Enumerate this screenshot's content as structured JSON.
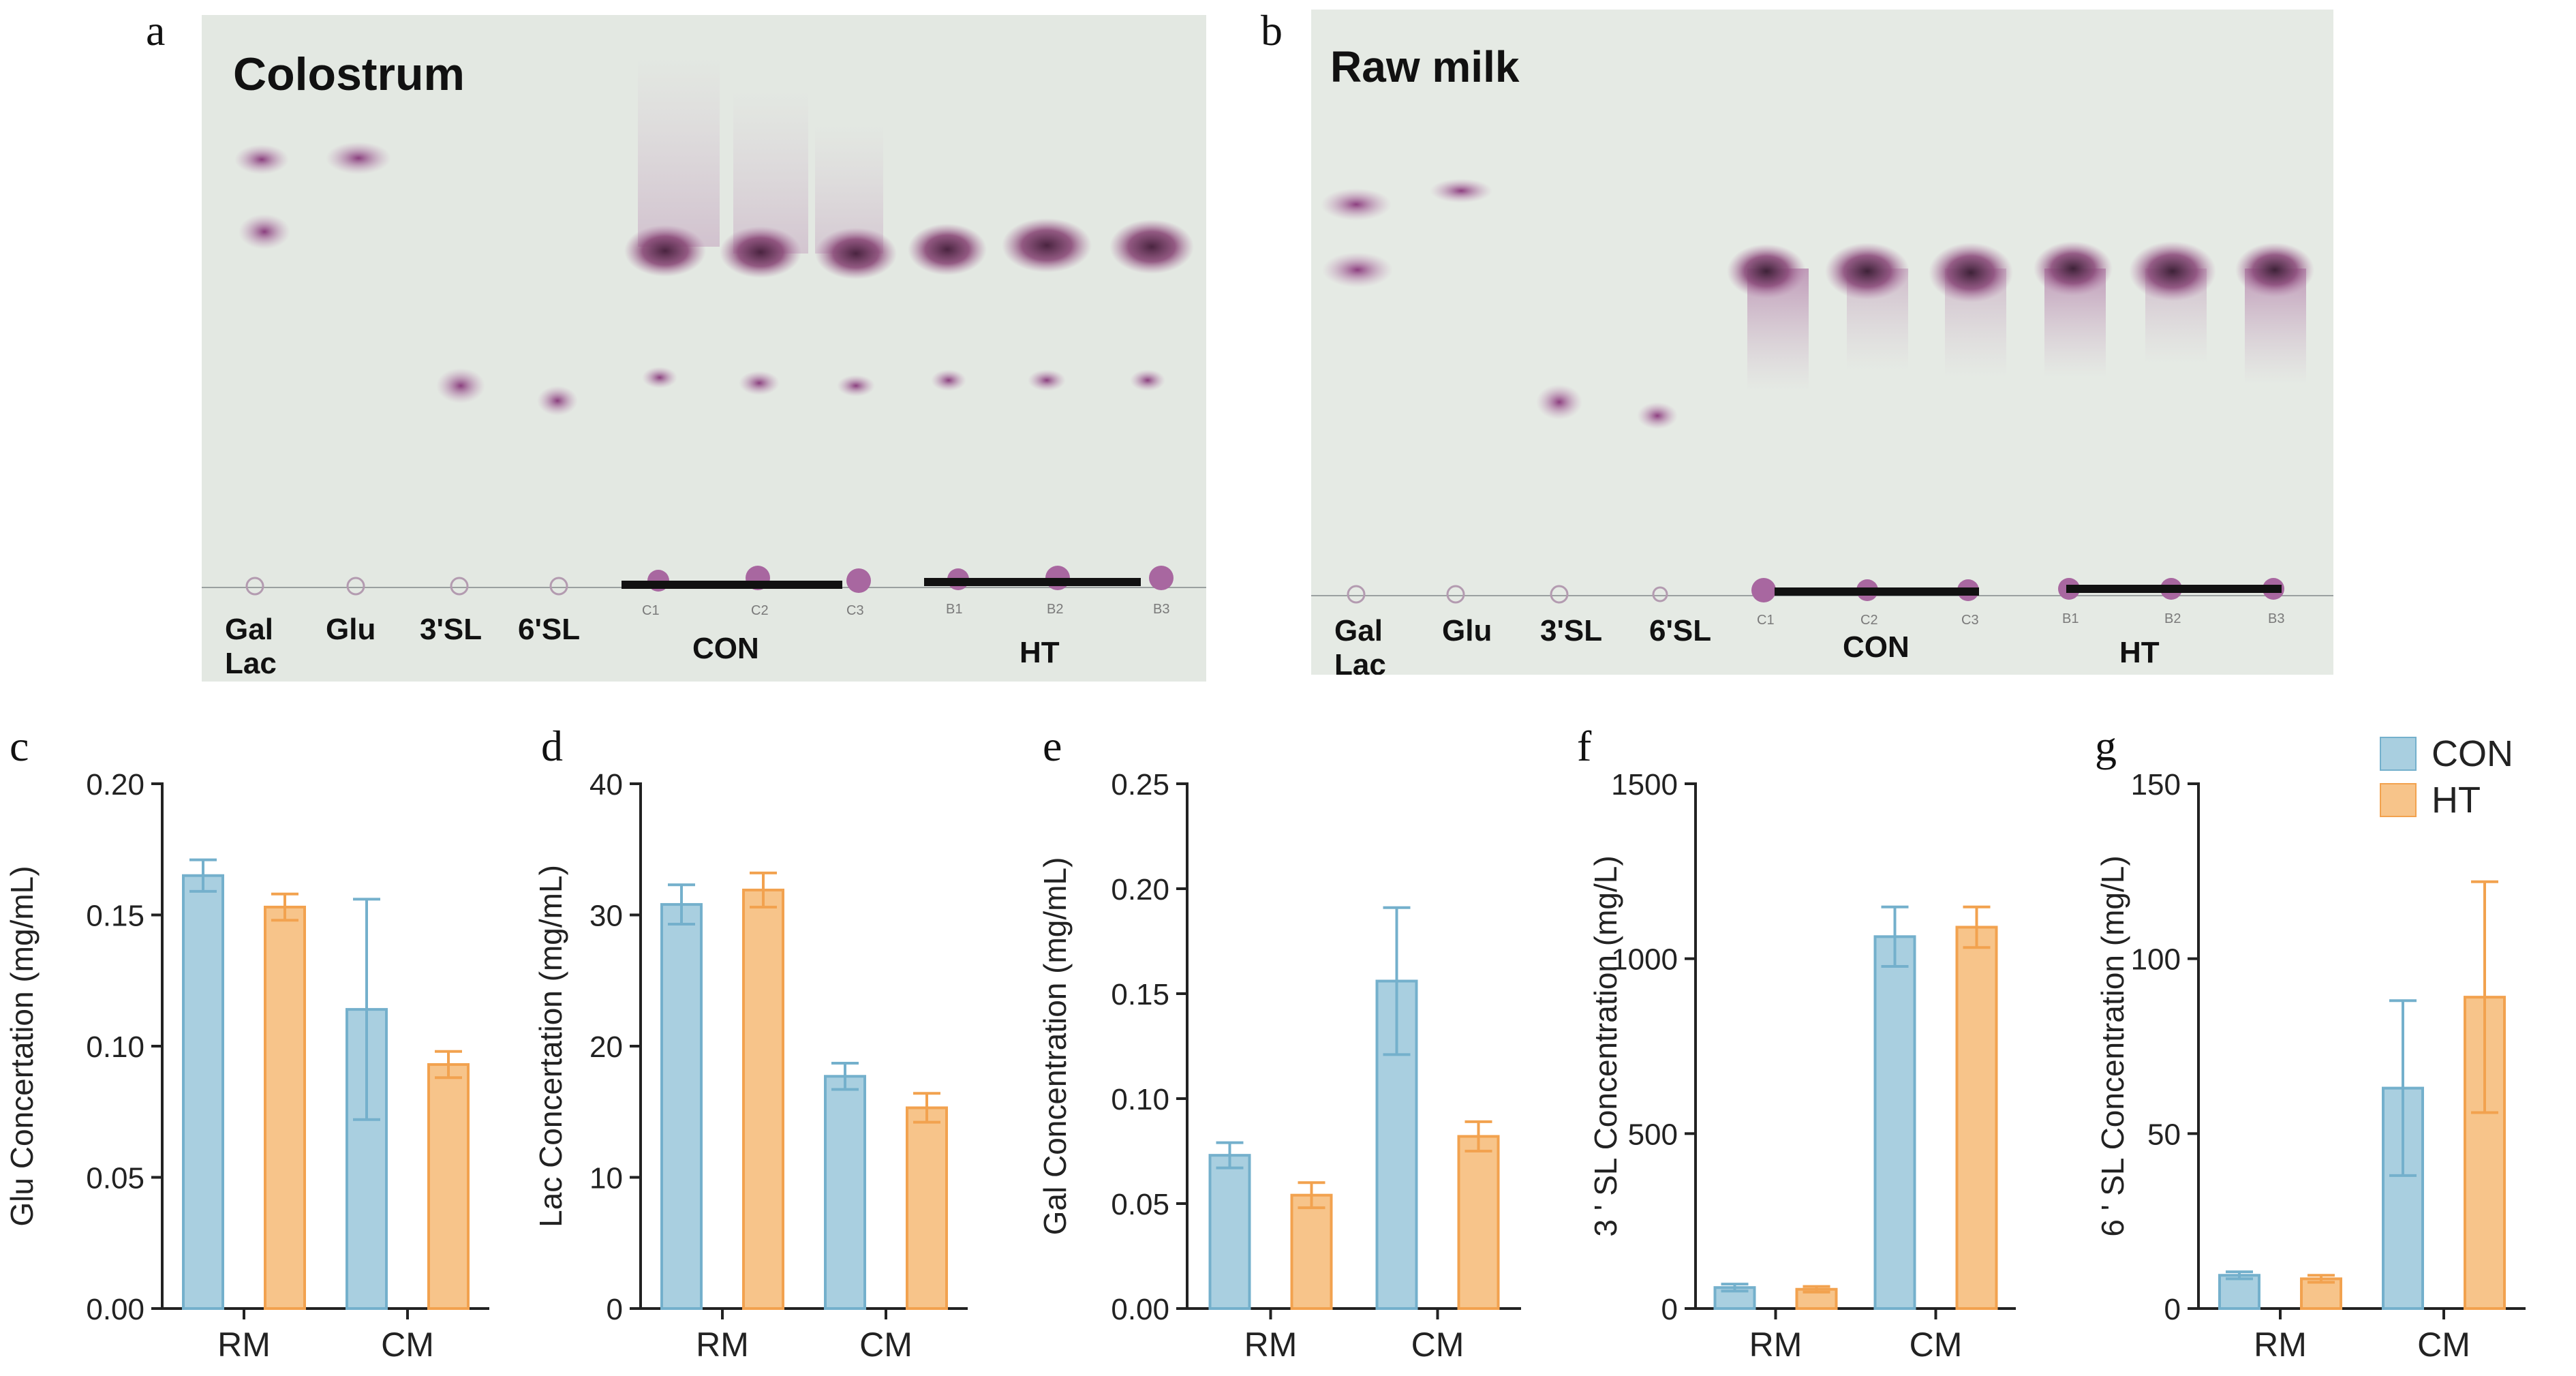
{
  "panels": {
    "a": {
      "letter": "a",
      "title": "Colostrum",
      "lane_labels": [
        "Gal",
        "Lac",
        "Glu",
        "3'SL",
        "6'SL",
        "CON",
        "HT"
      ],
      "lane_marks": [
        "C1",
        "C2",
        "C3",
        "B1",
        "B2",
        "B3"
      ]
    },
    "b": {
      "letter": "b",
      "title": "Raw milk",
      "lane_labels": [
        "Gal",
        "Lac",
        "Glu",
        "3'SL",
        "6'SL",
        "CON",
        "HT"
      ],
      "lane_marks": [
        "C1",
        "C2",
        "C3",
        "B1",
        "B2",
        "B3"
      ]
    }
  },
  "colors": {
    "CON": "#a9cfe0",
    "CON_edge": "#74b0cc",
    "HT": "#f7c48a",
    "HT_edge": "#f2a24f",
    "tlc_bg": "#dfe4de",
    "spot": "#5e2f4f"
  },
  "legend": {
    "items": [
      {
        "key": "CON",
        "label": "CON"
      },
      {
        "key": "HT",
        "label": "HT"
      }
    ]
  },
  "chart_data": [
    {
      "id": "c",
      "letter": "c",
      "type": "bar",
      "categories": [
        "RM",
        "CM"
      ],
      "ylabel": "Glu Concertation (mg/mL)",
      "ylim": [
        0,
        0.2
      ],
      "yticks": [
        "0.00",
        "0.05",
        "0.10",
        "0.15",
        "0.20"
      ],
      "series": [
        {
          "name": "CON",
          "values": [
            0.165,
            0.114
          ],
          "errors": [
            0.006,
            0.042
          ]
        },
        {
          "name": "HT",
          "values": [
            0.153,
            0.093
          ],
          "errors": [
            0.005,
            0.005
          ]
        }
      ]
    },
    {
      "id": "d",
      "letter": "d",
      "type": "bar",
      "categories": [
        "RM",
        "CM"
      ],
      "ylabel": "Lac Concertation (mg/mL)",
      "ylim": [
        0,
        40
      ],
      "yticks": [
        "0",
        "10",
        "20",
        "30",
        "40"
      ],
      "series": [
        {
          "name": "CON",
          "values": [
            30.8,
            17.7
          ],
          "errors": [
            1.5,
            1.0
          ]
        },
        {
          "name": "HT",
          "values": [
            31.9,
            15.3
          ],
          "errors": [
            1.3,
            1.1
          ]
        }
      ]
    },
    {
      "id": "e",
      "letter": "e",
      "type": "bar",
      "categories": [
        "RM",
        "CM"
      ],
      "ylabel": "Gal Concentration (mg/mL)",
      "ylim": [
        0,
        0.25
      ],
      "yticks": [
        "0.00",
        "0.05",
        "0.10",
        "0.15",
        "0.20",
        "0.25"
      ],
      "series": [
        {
          "name": "CON",
          "values": [
            0.073,
            0.156
          ],
          "errors": [
            0.006,
            0.035
          ]
        },
        {
          "name": "HT",
          "values": [
            0.054,
            0.082
          ],
          "errors": [
            0.006,
            0.007
          ]
        }
      ]
    },
    {
      "id": "f",
      "letter": "f",
      "type": "bar",
      "categories": [
        "RM",
        "CM"
      ],
      "ylabel": "3 ' SL Concentration (mg/L)",
      "ylim": [
        0,
        1500
      ],
      "yticks": [
        "0",
        "500",
        "1000",
        "1500"
      ],
      "series": [
        {
          "name": "CON",
          "values": [
            60,
            1063
          ],
          "errors": [
            10,
            85
          ]
        },
        {
          "name": "HT",
          "values": [
            55,
            1090
          ],
          "errors": [
            8,
            58
          ]
        }
      ]
    },
    {
      "id": "g",
      "letter": "g",
      "type": "bar",
      "categories": [
        "RM",
        "CM"
      ],
      "ylabel": "6 ' SL Concentration (mg/L)",
      "ylim": [
        0,
        150
      ],
      "yticks": [
        "0",
        "50",
        "100",
        "150"
      ],
      "series": [
        {
          "name": "CON",
          "values": [
            9.5,
            63
          ],
          "errors": [
            1.0,
            25
          ]
        },
        {
          "name": "HT",
          "values": [
            8.5,
            89
          ],
          "errors": [
            1.0,
            33
          ]
        }
      ]
    }
  ]
}
